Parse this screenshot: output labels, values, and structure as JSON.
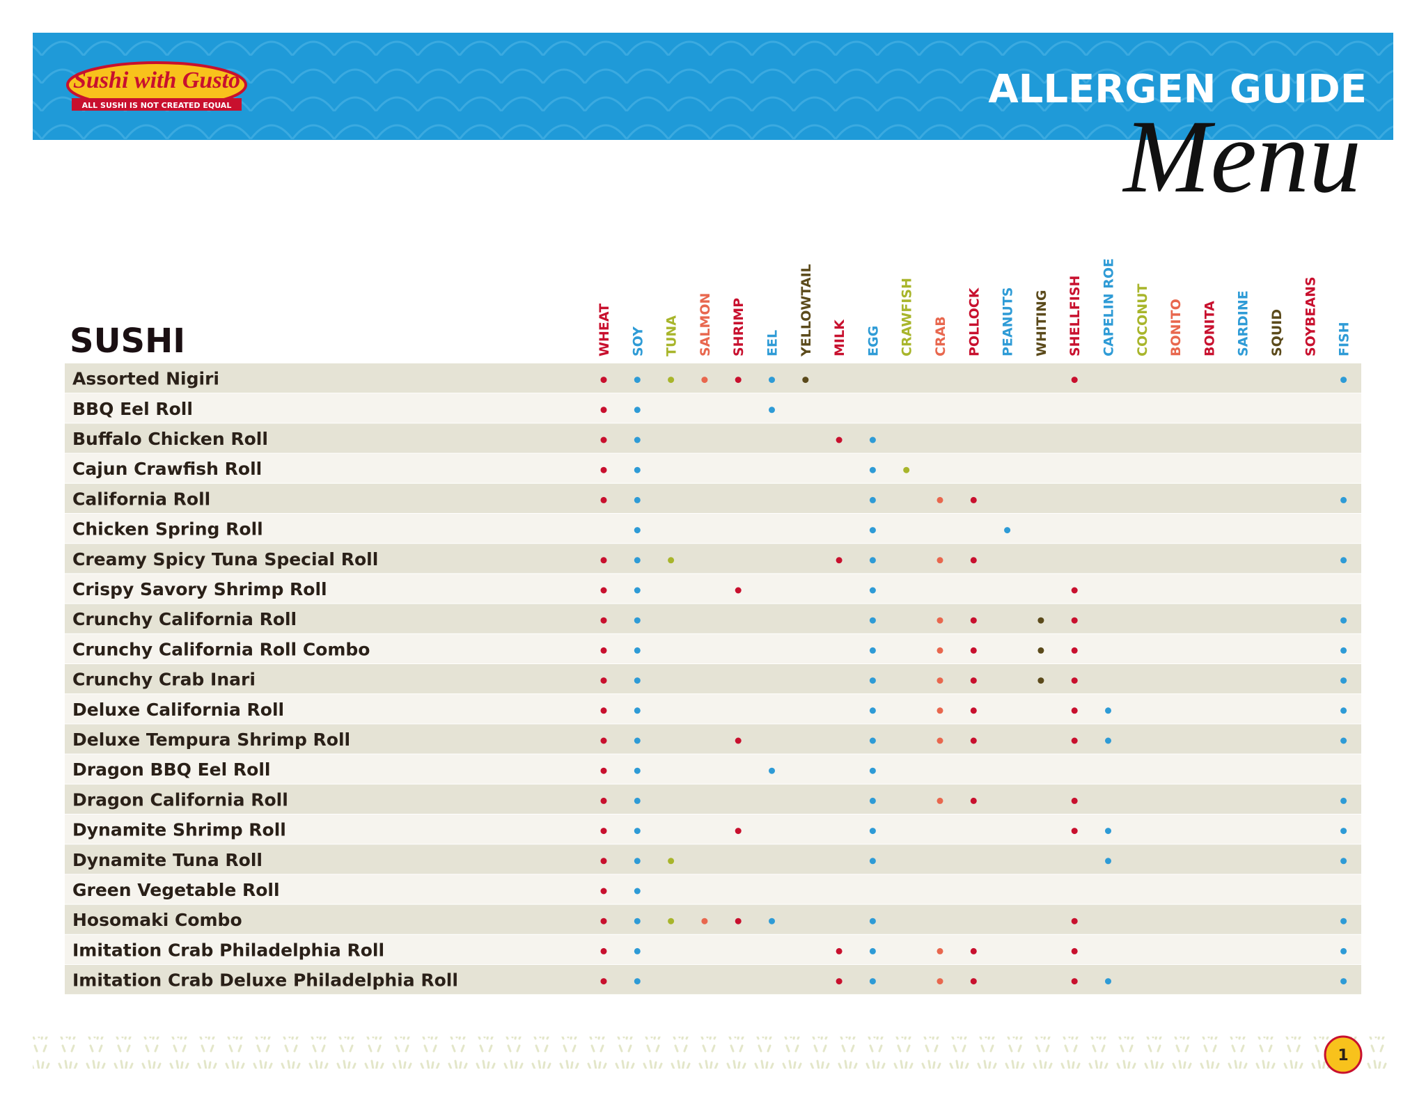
{
  "header": {
    "logo": "Sushi with Gusto",
    "tagline": "ALL SUSHI IS NOT CREATED EQUAL",
    "title": "ALLERGEN GUIDE",
    "subtitle": "Menu"
  },
  "section": "SUSHI",
  "columns": [
    {
      "name": "WHEAT",
      "color": "#c8102e"
    },
    {
      "name": "SOY",
      "color": "#2e9bd6"
    },
    {
      "name": "TUNA",
      "color": "#a8b52b"
    },
    {
      "name": "SALMON",
      "color": "#e8674e"
    },
    {
      "name": "SHRIMP",
      "color": "#c8102e"
    },
    {
      "name": "EEL",
      "color": "#2e9bd6"
    },
    {
      "name": "YELLOWTAIL",
      "color": "#5b4a1b"
    },
    {
      "name": "MILK",
      "color": "#c8102e"
    },
    {
      "name": "EGG",
      "color": "#2e9bd6"
    },
    {
      "name": "CRAWFISH",
      "color": "#a8b52b"
    },
    {
      "name": "CRAB",
      "color": "#e8674e"
    },
    {
      "name": "POLLOCK",
      "color": "#c8102e"
    },
    {
      "name": "PEANUTS",
      "color": "#2e9bd6"
    },
    {
      "name": "WHITING",
      "color": "#5b4a1b"
    },
    {
      "name": "SHELLFISH",
      "color": "#c8102e"
    },
    {
      "name": "CAPELIN ROE",
      "color": "#2e9bd6"
    },
    {
      "name": "COCONUT",
      "color": "#a8b52b"
    },
    {
      "name": "BONITO",
      "color": "#e8674e"
    },
    {
      "name": "BONITA",
      "color": "#c8102e"
    },
    {
      "name": "SARDINE",
      "color": "#2e9bd6"
    },
    {
      "name": "SQUID",
      "color": "#5b4a1b"
    },
    {
      "name": "SOYBEANS",
      "color": "#c8102e"
    },
    {
      "name": "FISH",
      "color": "#2e9bd6"
    }
  ],
  "rows": [
    {
      "name": "Assorted Nigiri",
      "cells": [
        true,
        true,
        true,
        true,
        true,
        true,
        true,
        false,
        false,
        false,
        false,
        false,
        false,
        false,
        true,
        false,
        false,
        false,
        false,
        false,
        false,
        false,
        true
      ]
    },
    {
      "name": "BBQ Eel Roll",
      "cells": [
        true,
        true,
        false,
        false,
        false,
        true,
        false,
        false,
        false,
        false,
        false,
        false,
        false,
        false,
        false,
        false,
        false,
        false,
        false,
        false,
        false,
        false,
        false
      ]
    },
    {
      "name": "Buffalo Chicken Roll",
      "cells": [
        true,
        true,
        false,
        false,
        false,
        false,
        false,
        true,
        true,
        false,
        false,
        false,
        false,
        false,
        false,
        false,
        false,
        false,
        false,
        false,
        false,
        false,
        false
      ]
    },
    {
      "name": "Cajun Crawfish Roll",
      "cells": [
        true,
        true,
        false,
        false,
        false,
        false,
        false,
        false,
        true,
        true,
        false,
        false,
        false,
        false,
        false,
        false,
        false,
        false,
        false,
        false,
        false,
        false,
        false
      ]
    },
    {
      "name": "California Roll",
      "cells": [
        true,
        true,
        false,
        false,
        false,
        false,
        false,
        false,
        true,
        false,
        true,
        true,
        false,
        false,
        false,
        false,
        false,
        false,
        false,
        false,
        false,
        false,
        true
      ]
    },
    {
      "name": "Chicken Spring Roll",
      "cells": [
        false,
        true,
        false,
        false,
        false,
        false,
        false,
        false,
        true,
        false,
        false,
        false,
        true,
        false,
        false,
        false,
        false,
        false,
        false,
        false,
        false,
        false,
        false
      ]
    },
    {
      "name": "Creamy Spicy Tuna Special Roll",
      "cells": [
        true,
        true,
        true,
        false,
        false,
        false,
        false,
        true,
        true,
        false,
        true,
        true,
        false,
        false,
        false,
        false,
        false,
        false,
        false,
        false,
        false,
        false,
        true
      ]
    },
    {
      "name": "Crispy Savory Shrimp Roll",
      "cells": [
        true,
        true,
        false,
        false,
        true,
        false,
        false,
        false,
        true,
        false,
        false,
        false,
        false,
        false,
        true,
        false,
        false,
        false,
        false,
        false,
        false,
        false,
        false
      ]
    },
    {
      "name": "Crunchy California Roll",
      "cells": [
        true,
        true,
        false,
        false,
        false,
        false,
        false,
        false,
        true,
        false,
        true,
        true,
        false,
        true,
        true,
        false,
        false,
        false,
        false,
        false,
        false,
        false,
        true
      ]
    },
    {
      "name": "Crunchy California Roll Combo",
      "cells": [
        true,
        true,
        false,
        false,
        false,
        false,
        false,
        false,
        true,
        false,
        true,
        true,
        false,
        true,
        true,
        false,
        false,
        false,
        false,
        false,
        false,
        false,
        true
      ]
    },
    {
      "name": "Crunchy Crab Inari",
      "cells": [
        true,
        true,
        false,
        false,
        false,
        false,
        false,
        false,
        true,
        false,
        true,
        true,
        false,
        true,
        true,
        false,
        false,
        false,
        false,
        false,
        false,
        false,
        true
      ]
    },
    {
      "name": "Deluxe California Roll",
      "cells": [
        true,
        true,
        false,
        false,
        false,
        false,
        false,
        false,
        true,
        false,
        true,
        true,
        false,
        false,
        true,
        true,
        false,
        false,
        false,
        false,
        false,
        false,
        true
      ]
    },
    {
      "name": "Deluxe Tempura Shrimp Roll",
      "cells": [
        true,
        true,
        false,
        false,
        true,
        false,
        false,
        false,
        true,
        false,
        true,
        true,
        false,
        false,
        true,
        true,
        false,
        false,
        false,
        false,
        false,
        false,
        true
      ]
    },
    {
      "name": "Dragon BBQ Eel Roll",
      "cells": [
        true,
        true,
        false,
        false,
        false,
        true,
        false,
        false,
        true,
        false,
        false,
        false,
        false,
        false,
        false,
        false,
        false,
        false,
        false,
        false,
        false,
        false,
        false
      ]
    },
    {
      "name": "Dragon California Roll",
      "cells": [
        true,
        true,
        false,
        false,
        false,
        false,
        false,
        false,
        true,
        false,
        true,
        true,
        false,
        false,
        true,
        false,
        false,
        false,
        false,
        false,
        false,
        false,
        true
      ]
    },
    {
      "name": "Dynamite Shrimp Roll",
      "cells": [
        true,
        true,
        false,
        false,
        true,
        false,
        false,
        false,
        true,
        false,
        false,
        false,
        false,
        false,
        true,
        true,
        false,
        false,
        false,
        false,
        false,
        false,
        true
      ]
    },
    {
      "name": "Dynamite Tuna Roll",
      "cells": [
        true,
        true,
        true,
        false,
        false,
        false,
        false,
        false,
        true,
        false,
        false,
        false,
        false,
        false,
        false,
        true,
        false,
        false,
        false,
        false,
        false,
        false,
        true
      ]
    },
    {
      "name": "Green Vegetable Roll",
      "cells": [
        true,
        true,
        false,
        false,
        false,
        false,
        false,
        false,
        false,
        false,
        false,
        false,
        false,
        false,
        false,
        false,
        false,
        false,
        false,
        false,
        false,
        false,
        false
      ]
    },
    {
      "name": "Hosomaki Combo",
      "cells": [
        true,
        true,
        true,
        true,
        true,
        true,
        false,
        false,
        true,
        false,
        false,
        false,
        false,
        false,
        true,
        false,
        false,
        false,
        false,
        false,
        false,
        false,
        true
      ]
    },
    {
      "name": "Imitation Crab Philadelphia Roll",
      "cells": [
        true,
        true,
        false,
        false,
        false,
        false,
        false,
        true,
        true,
        false,
        true,
        true,
        false,
        false,
        true,
        false,
        false,
        false,
        false,
        false,
        false,
        false,
        true
      ]
    },
    {
      "name": "Imitation Crab Deluxe Philadelphia Roll",
      "cells": [
        true,
        true,
        false,
        false,
        false,
        false,
        false,
        true,
        true,
        false,
        true,
        true,
        false,
        false,
        true,
        true,
        false,
        false,
        false,
        false,
        false,
        false,
        true
      ]
    }
  ],
  "footer": {
    "page": "1"
  }
}
